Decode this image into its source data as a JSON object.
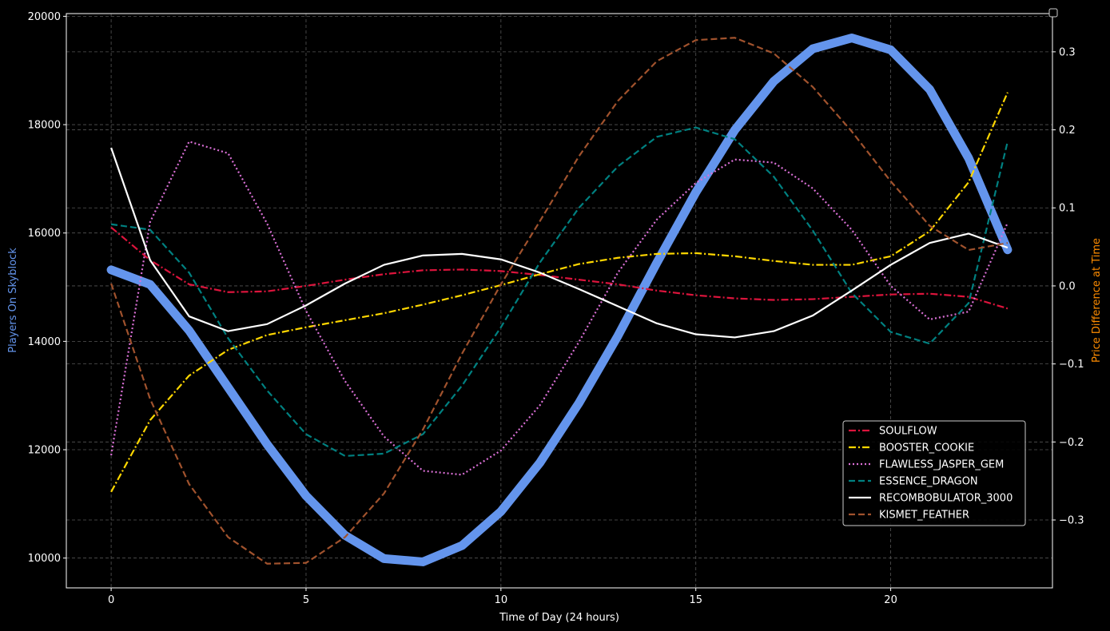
{
  "chart_data": {
    "type": "line",
    "xlabel": "Time of Day (24 hours)",
    "ylabel_left": "Players On Skyblock",
    "ylabel_right": "Price Difference at Time",
    "ylabel_left_color": "#6495ed",
    "ylabel_right_color": "#ff8c00",
    "background": "#000000",
    "grid": true,
    "legend_location": "lower-right",
    "xlim": [
      -1.15,
      24.15
    ],
    "ylim_left": [
      9450,
      20050
    ],
    "ylim_right": [
      -0.387,
      0.349
    ],
    "x_ticks": [
      0,
      5,
      10,
      15,
      20
    ],
    "y_ticks_left": [
      10000,
      12000,
      14000,
      16000,
      18000,
      20000
    ],
    "y_ticks_right": [
      -0.3,
      -0.2,
      -0.1,
      0.0,
      0.1,
      0.2,
      0.3
    ],
    "x": [
      0,
      1,
      2,
      3,
      4,
      5,
      6,
      7,
      8,
      9,
      10,
      11,
      12,
      13,
      14,
      15,
      16,
      17,
      18,
      19,
      20,
      21,
      22,
      23
    ],
    "players": {
      "color": "#6495ed",
      "values": [
        15320,
        15050,
        14200,
        13150,
        12100,
        11150,
        10420,
        9990,
        9930,
        10230,
        10860,
        11760,
        12860,
        14100,
        15450,
        16750,
        17900,
        18800,
        19400,
        19600,
        19380,
        18650,
        17380,
        15690
      ]
    },
    "series": [
      {
        "name": "SOULFLOW",
        "color": "#dc143c",
        "dash": "dashdot",
        "values": [
          0.075,
          0.033,
          0.002,
          -0.008,
          -0.007,
          0.0,
          0.008,
          0.015,
          0.02,
          0.021,
          0.019,
          0.014,
          0.008,
          0.002,
          -0.006,
          -0.012,
          -0.016,
          -0.018,
          -0.017,
          -0.014,
          -0.011,
          -0.01,
          -0.014,
          -0.029
        ]
      },
      {
        "name": "BOOSTER_COOKIE",
        "color": "#ffd700",
        "dash": "dashdot",
        "values": [
          -0.264,
          -0.172,
          -0.115,
          -0.082,
          -0.063,
          -0.053,
          -0.044,
          -0.035,
          -0.024,
          -0.012,
          0.001,
          0.015,
          0.028,
          0.036,
          0.041,
          0.042,
          0.038,
          0.032,
          0.027,
          0.027,
          0.038,
          0.07,
          0.133,
          0.248
        ]
      },
      {
        "name": "FLAWLESS_JASPER_GEM",
        "color": "#da70d6",
        "dash": "dotted",
        "values": [
          -0.217,
          0.082,
          0.185,
          0.17,
          0.08,
          -0.032,
          -0.122,
          -0.193,
          -0.237,
          -0.242,
          -0.211,
          -0.153,
          -0.072,
          0.017,
          0.085,
          0.132,
          0.162,
          0.158,
          0.125,
          0.072,
          0.0,
          -0.043,
          -0.033,
          0.081
        ]
      },
      {
        "name": "ESSENCE_DRAGON",
        "color": "#008080",
        "dash": "dashed",
        "values": [
          0.079,
          0.072,
          0.017,
          -0.067,
          -0.134,
          -0.19,
          -0.218,
          -0.215,
          -0.19,
          -0.128,
          -0.053,
          0.03,
          0.1,
          0.153,
          0.191,
          0.203,
          0.188,
          0.14,
          0.071,
          -0.009,
          -0.059,
          -0.074,
          -0.022,
          0.185
        ]
      },
      {
        "name": "RECOMBOBULATOR_3000",
        "color": "#ffffff",
        "dash": "solid",
        "values": [
          0.177,
          0.033,
          -0.039,
          -0.058,
          -0.049,
          -0.025,
          0.003,
          0.027,
          0.039,
          0.041,
          0.034,
          0.017,
          -0.004,
          -0.026,
          -0.048,
          -0.062,
          -0.066,
          -0.058,
          -0.038,
          -0.006,
          0.027,
          0.055,
          0.067,
          0.049
        ]
      },
      {
        "name": "KISMET_FEATHER",
        "color": "#a0522d",
        "dash": "dashed",
        "values": [
          0.003,
          -0.145,
          -0.254,
          -0.322,
          -0.356,
          -0.355,
          -0.322,
          -0.266,
          -0.184,
          -0.087,
          0.002,
          0.083,
          0.166,
          0.237,
          0.288,
          0.315,
          0.318,
          0.298,
          0.255,
          0.198,
          0.134,
          0.077,
          0.046,
          0.055
        ]
      }
    ]
  }
}
